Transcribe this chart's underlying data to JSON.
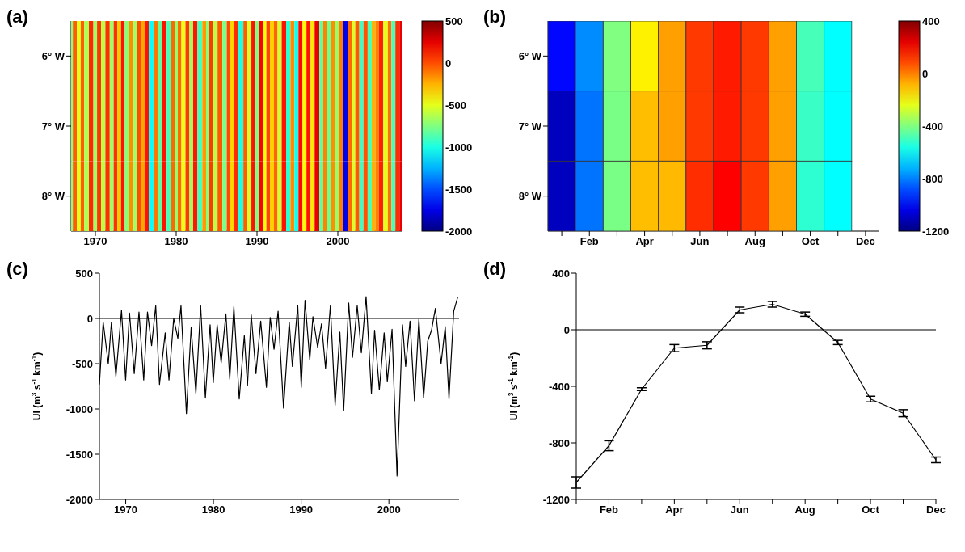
{
  "chart_data": [
    {
      "type": "heatmap",
      "title": "(a)",
      "x": [
        1967.0,
        1967.43,
        1968.01,
        1968.37,
        1968.88,
        1969.52,
        1969.99,
        1970.43,
        1970.97,
        1971.51,
        1972.05,
        1972.48,
        1972.95,
        1973.42,
        1973.85,
        1974.5,
        1974.93,
        1975.47,
        1975.94,
        1976.3,
        1976.92,
        1977.46,
        1978.0,
        1978.54,
        1979.08,
        1979.62,
        1979.98,
        1980.42,
        1980.88,
        1981.42,
        1981.86,
        1982.33,
        1982.94,
        1983.52,
        1983.88,
        1984.31,
        1984.85,
        1985.39,
        1986.04,
        1986.47,
        1986.91,
        1987.37,
        1987.99,
        1988.64,
        1989.0,
        1989.61,
        1990.01,
        1990.44,
        1990.98,
        1991.34,
        1991.88,
        1992.32,
        1992.78,
        1993.33,
        1993.87,
        1994.41,
        1994.84,
        1995.42,
        1995.85,
        1996.39,
        1996.86,
        1997.4,
        1998.01,
        1998.37,
        1998.91,
        1999.46,
        1999.82,
        2000.36,
        2000.93,
        2001.55,
        2001.91,
        2002.41,
        2002.92,
        2003.42,
        2003.96,
        2004.43,
        2004.86,
        2005.3,
        2005.95,
        2006.42,
        2006.85,
        2007.39,
        2007.86
      ],
      "xlim": [
        1967,
        2008
      ],
      "xticks": [
        1970,
        1980,
        1990,
        2000
      ],
      "y_categories": [
        "6° W",
        "7° W",
        "8° W"
      ],
      "cells": [
        [
          -730,
          -40,
          -500,
          -40,
          -640,
          90,
          -680,
          60,
          -610,
          70,
          -680,
          70,
          -300,
          140,
          -730,
          -160,
          -680,
          0,
          -220,
          140,
          -1050,
          -100,
          -830,
          140,
          -880,
          -70,
          -710,
          -70,
          -490,
          50,
          -670,
          130,
          -890,
          -190,
          -740,
          40,
          -610,
          -30,
          -760,
          10,
          -340,
          80,
          -990,
          -40,
          -530,
          140,
          -760,
          200,
          -460,
          20,
          -320,
          -60,
          -550,
          140,
          -960,
          -150,
          -1020,
          170,
          -430,
          140,
          -380,
          240,
          -830,
          -130,
          -790,
          -160,
          -700,
          -120,
          -1740,
          -70,
          -530,
          -30,
          -910,
          -10,
          -880,
          -250,
          -130,
          110,
          -500,
          -90,
          -890,
          80,
          240
        ],
        [
          -730,
          -40,
          -500,
          -40,
          -640,
          90,
          -680,
          60,
          -610,
          70,
          -680,
          70,
          -300,
          140,
          -730,
          -160,
          -680,
          0,
          -220,
          140,
          -1050,
          -100,
          -830,
          140,
          -880,
          -70,
          -710,
          -70,
          -490,
          50,
          -670,
          130,
          -890,
          -190,
          -740,
          40,
          -610,
          -30,
          -760,
          10,
          -340,
          80,
          -990,
          -40,
          -530,
          140,
          -760,
          200,
          -460,
          20,
          -320,
          -60,
          -550,
          140,
          -960,
          -150,
          -1020,
          170,
          -430,
          140,
          -380,
          240,
          -830,
          -130,
          -790,
          -160,
          -700,
          -120,
          -1740,
          -70,
          -530,
          -30,
          -910,
          -10,
          -880,
          -250,
          -130,
          110,
          -500,
          -90,
          -890,
          80,
          240
        ],
        [
          -730,
          -40,
          -500,
          -40,
          -640,
          90,
          -680,
          60,
          -610,
          70,
          -680,
          70,
          -300,
          140,
          -730,
          -160,
          -680,
          0,
          -220,
          140,
          -1050,
          -100,
          -830,
          140,
          -880,
          -70,
          -710,
          -70,
          -490,
          50,
          -670,
          130,
          -890,
          -190,
          -740,
          40,
          -610,
          -30,
          -760,
          10,
          -340,
          80,
          -990,
          -40,
          -530,
          140,
          -760,
          200,
          -460,
          20,
          -320,
          -60,
          -550,
          140,
          -960,
          -150,
          -1020,
          170,
          -430,
          140,
          -380,
          240,
          -830,
          -130,
          -790,
          -160,
          -700,
          -120,
          -1740,
          -70,
          -530,
          -30,
          -910,
          -10,
          -880,
          -250,
          -130,
          110,
          -500,
          -90,
          -890,
          80,
          240
        ]
      ],
      "clim": [
        -2000,
        500
      ],
      "cticks": [
        -2000,
        -1500,
        -1000,
        -500,
        0,
        500
      ]
    },
    {
      "type": "heatmap",
      "title": "(b)",
      "categories": [
        null,
        "Feb",
        null,
        "Apr",
        null,
        "Jun",
        null,
        "Aug",
        null,
        "Oct",
        null,
        "Dec"
      ],
      "y_categories": [
        "6° W",
        "7° W",
        "8° W"
      ],
      "cells": [
        [
          -990,
          -780,
          -400,
          -180,
          -50,
          110,
          160,
          110,
          -50,
          -490,
          -600,
          null
        ],
        [
          -1100,
          -820,
          -410,
          -100,
          -50,
          110,
          160,
          110,
          -50,
          -510,
          -600,
          null
        ],
        [
          -1100,
          -820,
          -410,
          -100,
          -90,
          130,
          200,
          110,
          -50,
          -530,
          -600,
          null
        ]
      ],
      "clim": [
        -1200,
        400
      ],
      "cticks": [
        -1200,
        -800,
        -400,
        0,
        400
      ]
    },
    {
      "type": "line",
      "title": "(c)",
      "ylabel": "UI (m$^{3}$ s$^{-1}$ km$^{-1}$)",
      "color": "#000000",
      "x": [
        1967.0,
        1967.43,
        1968.01,
        1968.37,
        1968.88,
        1969.52,
        1969.99,
        1970.43,
        1970.97,
        1971.51,
        1972.05,
        1972.48,
        1972.95,
        1973.42,
        1973.85,
        1974.5,
        1974.93,
        1975.47,
        1975.94,
        1976.3,
        1976.92,
        1977.46,
        1978.0,
        1978.54,
        1979.08,
        1979.62,
        1979.98,
        1980.42,
        1980.88,
        1981.42,
        1981.86,
        1982.33,
        1982.94,
        1983.52,
        1983.88,
        1984.31,
        1984.85,
        1985.39,
        1986.04,
        1986.47,
        1986.91,
        1987.37,
        1987.99,
        1988.64,
        1989.0,
        1989.61,
        1990.01,
        1990.44,
        1990.98,
        1991.34,
        1991.88,
        1992.32,
        1992.78,
        1993.33,
        1993.87,
        1994.41,
        1994.84,
        1995.42,
        1995.85,
        1996.39,
        1996.86,
        1997.4,
        1998.01,
        1998.37,
        1998.91,
        1999.46,
        1999.82,
        2000.36,
        2000.93,
        2001.55,
        2001.91,
        2002.41,
        2002.92,
        2003.42,
        2003.96,
        2004.43,
        2004.86,
        2005.3,
        2005.95,
        2006.42,
        2006.85,
        2007.39,
        2007.86
      ],
      "values": [
        -730,
        -40,
        -500,
        -40,
        -640,
        90,
        -680,
        60,
        -610,
        70,
        -680,
        70,
        -300,
        140,
        -730,
        -160,
        -680,
        0,
        -220,
        140,
        -1050,
        -100,
        -830,
        140,
        -880,
        -70,
        -710,
        -70,
        -490,
        50,
        -670,
        130,
        -890,
        -190,
        -740,
        40,
        -610,
        -30,
        -760,
        10,
        -340,
        80,
        -990,
        -40,
        -530,
        140,
        -760,
        200,
        -460,
        20,
        -320,
        -60,
        -550,
        140,
        -960,
        -150,
        -1020,
        170,
        -430,
        140,
        -380,
        240,
        -830,
        -130,
        -790,
        -160,
        -700,
        -120,
        -1740,
        -70,
        -530,
        -30,
        -910,
        -10,
        -880,
        -250,
        -130,
        110,
        -500,
        -90,
        -890,
        80,
        240
      ],
      "xlim": [
        1967,
        2008
      ],
      "xticks": [
        1970,
        1980,
        1990,
        2000
      ],
      "ylim": [
        -2000,
        500
      ],
      "yticks": [
        -2000,
        -1500,
        -1000,
        -500,
        0,
        500
      ],
      "ref_lines": [
        {
          "axis": "y",
          "value": 0,
          "color": "#000000"
        }
      ]
    },
    {
      "type": "line",
      "title": "(d)",
      "ylabel": "UI (m$^{3}$ s$^{-1}$ km$^{-1}$)",
      "color": "#000000",
      "categories": [
        null,
        "Feb",
        null,
        "Apr",
        null,
        "Jun",
        null,
        "Aug",
        null,
        "Oct",
        null,
        "Dec"
      ],
      "values": [
        -1080,
        -820,
        -420,
        -130,
        -110,
        140,
        180,
        110,
        -90,
        -490,
        -590,
        -920
      ],
      "errors": [
        40,
        35,
        10,
        25,
        25,
        20,
        20,
        15,
        15,
        20,
        25,
        20
      ],
      "ylim": [
        -1200,
        400
      ],
      "yticks": [
        -1200,
        -800,
        -400,
        0,
        400
      ],
      "ref_lines": [
        {
          "axis": "y",
          "value": 0,
          "color": "#000000"
        }
      ]
    }
  ]
}
